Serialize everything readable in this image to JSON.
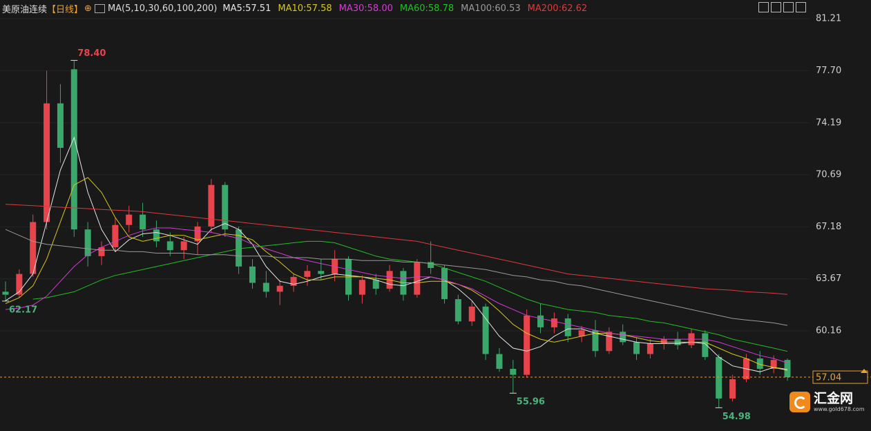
{
  "header": {
    "symbol": "美原油连续",
    "period": "【日线】",
    "ma_params": "MA(5,10,30,60,100,200)"
  },
  "chart_data": {
    "type": "candlestick",
    "open": [
      62.8,
      62.6,
      64.0,
      67.5,
      75.5,
      77.8,
      67.0,
      65.2,
      65.8,
      67.3,
      68.0,
      67.0,
      66.2,
      65.6,
      66.2,
      67.2,
      70.0,
      67.0,
      64.5,
      63.4,
      62.8,
      63.2,
      63.8,
      64.2,
      64.0,
      65.0,
      62.6,
      63.6,
      63.0,
      64.2,
      62.6,
      64.8,
      64.4,
      62.3,
      60.8,
      61.8,
      58.6,
      57.6,
      57.2,
      61.2,
      60.4,
      61.0,
      59.8,
      60.2,
      58.8,
      60.1,
      59.4,
      58.6,
      59.3,
      59.6,
      59.2,
      60.0,
      58.4,
      55.6,
      56.9,
      58.3,
      57.6,
      58.2
    ],
    "high": [
      63.5,
      64.3,
      68.0,
      77.7,
      76.8,
      78.4,
      67.5,
      66.2,
      67.8,
      68.6,
      68.8,
      67.6,
      66.8,
      66.5,
      67.5,
      70.4,
      70.2,
      67.2,
      65.0,
      64.2,
      63.6,
      64.0,
      64.6,
      65.0,
      65.6,
      65.2,
      63.9,
      64.0,
      64.6,
      64.4,
      65.0,
      66.2,
      64.6,
      62.6,
      62.2,
      62.0,
      59.0,
      58.2,
      61.6,
      62.0,
      61.4,
      61.3,
      60.5,
      60.9,
      60.4,
      60.6,
      59.7,
      59.6,
      59.8,
      60.1,
      60.3,
      60.2,
      58.6,
      57.2,
      58.6,
      58.8,
      58.5,
      58.3
    ],
    "low": [
      62.17,
      62.4,
      63.8,
      67.0,
      71.5,
      66.5,
      64.5,
      64.6,
      65.5,
      66.8,
      66.5,
      65.8,
      65.2,
      65.0,
      65.3,
      66.8,
      66.5,
      64.0,
      63.0,
      62.4,
      61.9,
      62.8,
      63.2,
      63.6,
      63.5,
      62.2,
      62.0,
      62.6,
      62.8,
      62.2,
      62.4,
      64.0,
      62.0,
      60.6,
      60.5,
      58.2,
      57.4,
      55.96,
      57.0,
      60.0,
      60.0,
      59.4,
      59.4,
      58.4,
      58.6,
      59.2,
      58.2,
      58.3,
      58.9,
      58.9,
      59.0,
      58.2,
      54.98,
      55.4,
      56.7,
      57.2,
      57.3,
      56.8
    ],
    "close": [
      62.6,
      64.0,
      67.5,
      75.5,
      72.5,
      67.0,
      65.2,
      65.8,
      67.3,
      68.0,
      67.0,
      66.2,
      65.6,
      66.2,
      67.2,
      70.0,
      67.0,
      64.5,
      63.4,
      62.8,
      63.2,
      63.8,
      64.2,
      64.0,
      65.0,
      62.6,
      63.6,
      63.0,
      64.2,
      62.6,
      64.8,
      64.4,
      62.3,
      60.8,
      61.8,
      58.6,
      57.6,
      57.2,
      61.2,
      60.4,
      61.0,
      59.8,
      60.2,
      58.8,
      60.1,
      59.4,
      58.6,
      59.3,
      59.6,
      59.2,
      60.0,
      58.4,
      55.6,
      56.9,
      58.3,
      57.6,
      58.2,
      57.04
    ],
    "up_color": "#e8444c",
    "down_color": "#3aa86a",
    "series": [
      {
        "name": "MA5:57.51",
        "color": "#e6e6e6",
        "values": [
          62.2,
          62.8,
          64.0,
          67.5,
          71.0,
          73.2,
          69.5,
          67.0,
          65.5,
          66.3,
          66.7,
          66.8,
          66.6,
          66.3,
          66.0,
          67.0,
          67.4,
          67.0,
          66.0,
          64.5,
          63.5,
          63.3,
          63.5,
          63.8,
          64.0,
          63.9,
          63.8,
          63.6,
          63.3,
          63.2,
          63.5,
          63.8,
          63.6,
          63.0,
          62.2,
          61.0,
          59.8,
          59.0,
          58.8,
          59.1,
          59.8,
          60.3,
          60.3,
          60.0,
          59.8,
          59.6,
          59.4,
          59.3,
          59.3,
          59.3,
          59.4,
          59.3,
          58.4,
          57.8,
          57.6,
          57.4,
          57.7,
          57.51
        ]
      },
      {
        "name": "MA10:57.58",
        "color": "#d8c61e",
        "values": [
          62.0,
          62.4,
          63.2,
          65.0,
          67.5,
          70.0,
          70.5,
          69.5,
          67.8,
          66.5,
          66.2,
          66.4,
          66.6,
          66.6,
          66.3,
          66.5,
          66.7,
          66.6,
          66.3,
          65.5,
          64.8,
          64.0,
          63.6,
          63.6,
          63.8,
          63.8,
          63.8,
          63.7,
          63.6,
          63.4,
          63.4,
          63.5,
          63.5,
          63.3,
          62.9,
          62.3,
          61.5,
          60.6,
          60.0,
          59.6,
          59.4,
          59.6,
          59.8,
          60.0,
          60.0,
          59.9,
          59.7,
          59.5,
          59.4,
          59.4,
          59.4,
          59.4,
          59.0,
          58.6,
          58.3,
          57.9,
          57.7,
          57.58
        ]
      },
      {
        "name": "MA30:58.00",
        "color": "#d43cd4",
        "values": [
          61.6,
          61.7,
          61.9,
          62.5,
          63.5,
          64.5,
          65.3,
          65.8,
          66.2,
          66.6,
          66.9,
          67.1,
          67.1,
          67.0,
          66.9,
          66.8,
          66.6,
          66.4,
          66.0,
          65.7,
          65.4,
          65.1,
          64.9,
          64.7,
          64.5,
          64.3,
          64.1,
          63.9,
          63.8,
          63.7,
          63.8,
          63.8,
          63.6,
          63.3,
          63.0,
          62.5,
          62.0,
          61.6,
          61.2,
          61.0,
          60.8,
          60.6,
          60.4,
          60.2,
          60.0,
          59.9,
          59.8,
          59.7,
          59.6,
          59.6,
          59.6,
          59.6,
          59.4,
          59.1,
          58.8,
          58.5,
          58.3,
          58.0
        ]
      },
      {
        "name": "MA60:58.78",
        "color": "#22c022",
        "values": [
          null,
          null,
          62.3,
          62.4,
          62.6,
          62.8,
          63.2,
          63.6,
          63.9,
          64.1,
          64.3,
          64.5,
          64.7,
          64.9,
          65.1,
          65.3,
          65.5,
          65.7,
          65.8,
          65.9,
          66.0,
          66.1,
          66.2,
          66.2,
          66.1,
          65.8,
          65.5,
          65.2,
          65.0,
          64.9,
          64.8,
          64.7,
          64.4,
          64.1,
          63.8,
          63.5,
          63.1,
          62.7,
          62.3,
          62.0,
          61.8,
          61.6,
          61.5,
          61.4,
          61.2,
          61.1,
          61.0,
          60.8,
          60.7,
          60.5,
          60.3,
          60.1,
          59.9,
          59.6,
          59.4,
          59.2,
          59.0,
          58.78
        ]
      },
      {
        "name": "MA100:60.53",
        "color": "#9a9a9a",
        "values": [
          67.0,
          66.6,
          66.2,
          66.0,
          65.9,
          65.8,
          65.7,
          65.6,
          65.6,
          65.5,
          65.5,
          65.4,
          65.4,
          65.4,
          65.3,
          65.3,
          65.3,
          65.2,
          65.2,
          65.2,
          65.1,
          65.1,
          65.1,
          65.0,
          65.0,
          65.0,
          64.9,
          64.9,
          64.9,
          64.8,
          64.8,
          64.7,
          64.6,
          64.5,
          64.4,
          64.3,
          64.1,
          63.9,
          63.8,
          63.6,
          63.5,
          63.3,
          63.2,
          63.0,
          62.8,
          62.6,
          62.4,
          62.2,
          62.0,
          61.8,
          61.6,
          61.4,
          61.2,
          61.0,
          60.9,
          60.8,
          60.7,
          60.53
        ]
      },
      {
        "name": "MA200:62.62",
        "color": "#e0393e",
        "values": [
          68.7,
          68.65,
          68.6,
          68.55,
          68.5,
          68.45,
          68.4,
          68.35,
          68.3,
          68.25,
          68.2,
          68.1,
          68.0,
          67.9,
          67.8,
          67.7,
          67.6,
          67.5,
          67.4,
          67.3,
          67.2,
          67.1,
          67.0,
          66.9,
          66.8,
          66.7,
          66.6,
          66.5,
          66.4,
          66.3,
          66.2,
          66.0,
          65.8,
          65.6,
          65.4,
          65.2,
          65.0,
          64.8,
          64.6,
          64.4,
          64.2,
          64.0,
          63.9,
          63.8,
          63.7,
          63.6,
          63.5,
          63.4,
          63.3,
          63.2,
          63.1,
          63.0,
          62.95,
          62.9,
          62.8,
          62.75,
          62.7,
          62.62
        ]
      }
    ],
    "ylim": [
      53.41,
      82.47
    ],
    "yticks": [
      81.21,
      {
        "value": 77.7,
        "label": "77.70"
      },
      74.19,
      70.69,
      67.18,
      63.67,
      60.16
    ],
    "grid": true,
    "last": {
      "value": 57.04,
      "color": "#eea035"
    },
    "annotations": [
      {
        "value": 78.4,
        "label": "78.40",
        "color": "#e8444c"
      },
      {
        "value": 62.17,
        "color": "#4fb07e"
      },
      {
        "value": 55.96,
        "color": "#4fb07e"
      },
      {
        "value": 54.98,
        "color": "#4fb07e"
      }
    ]
  },
  "logo": {
    "name": "汇金网",
    "url": "www.gold678.com"
  }
}
